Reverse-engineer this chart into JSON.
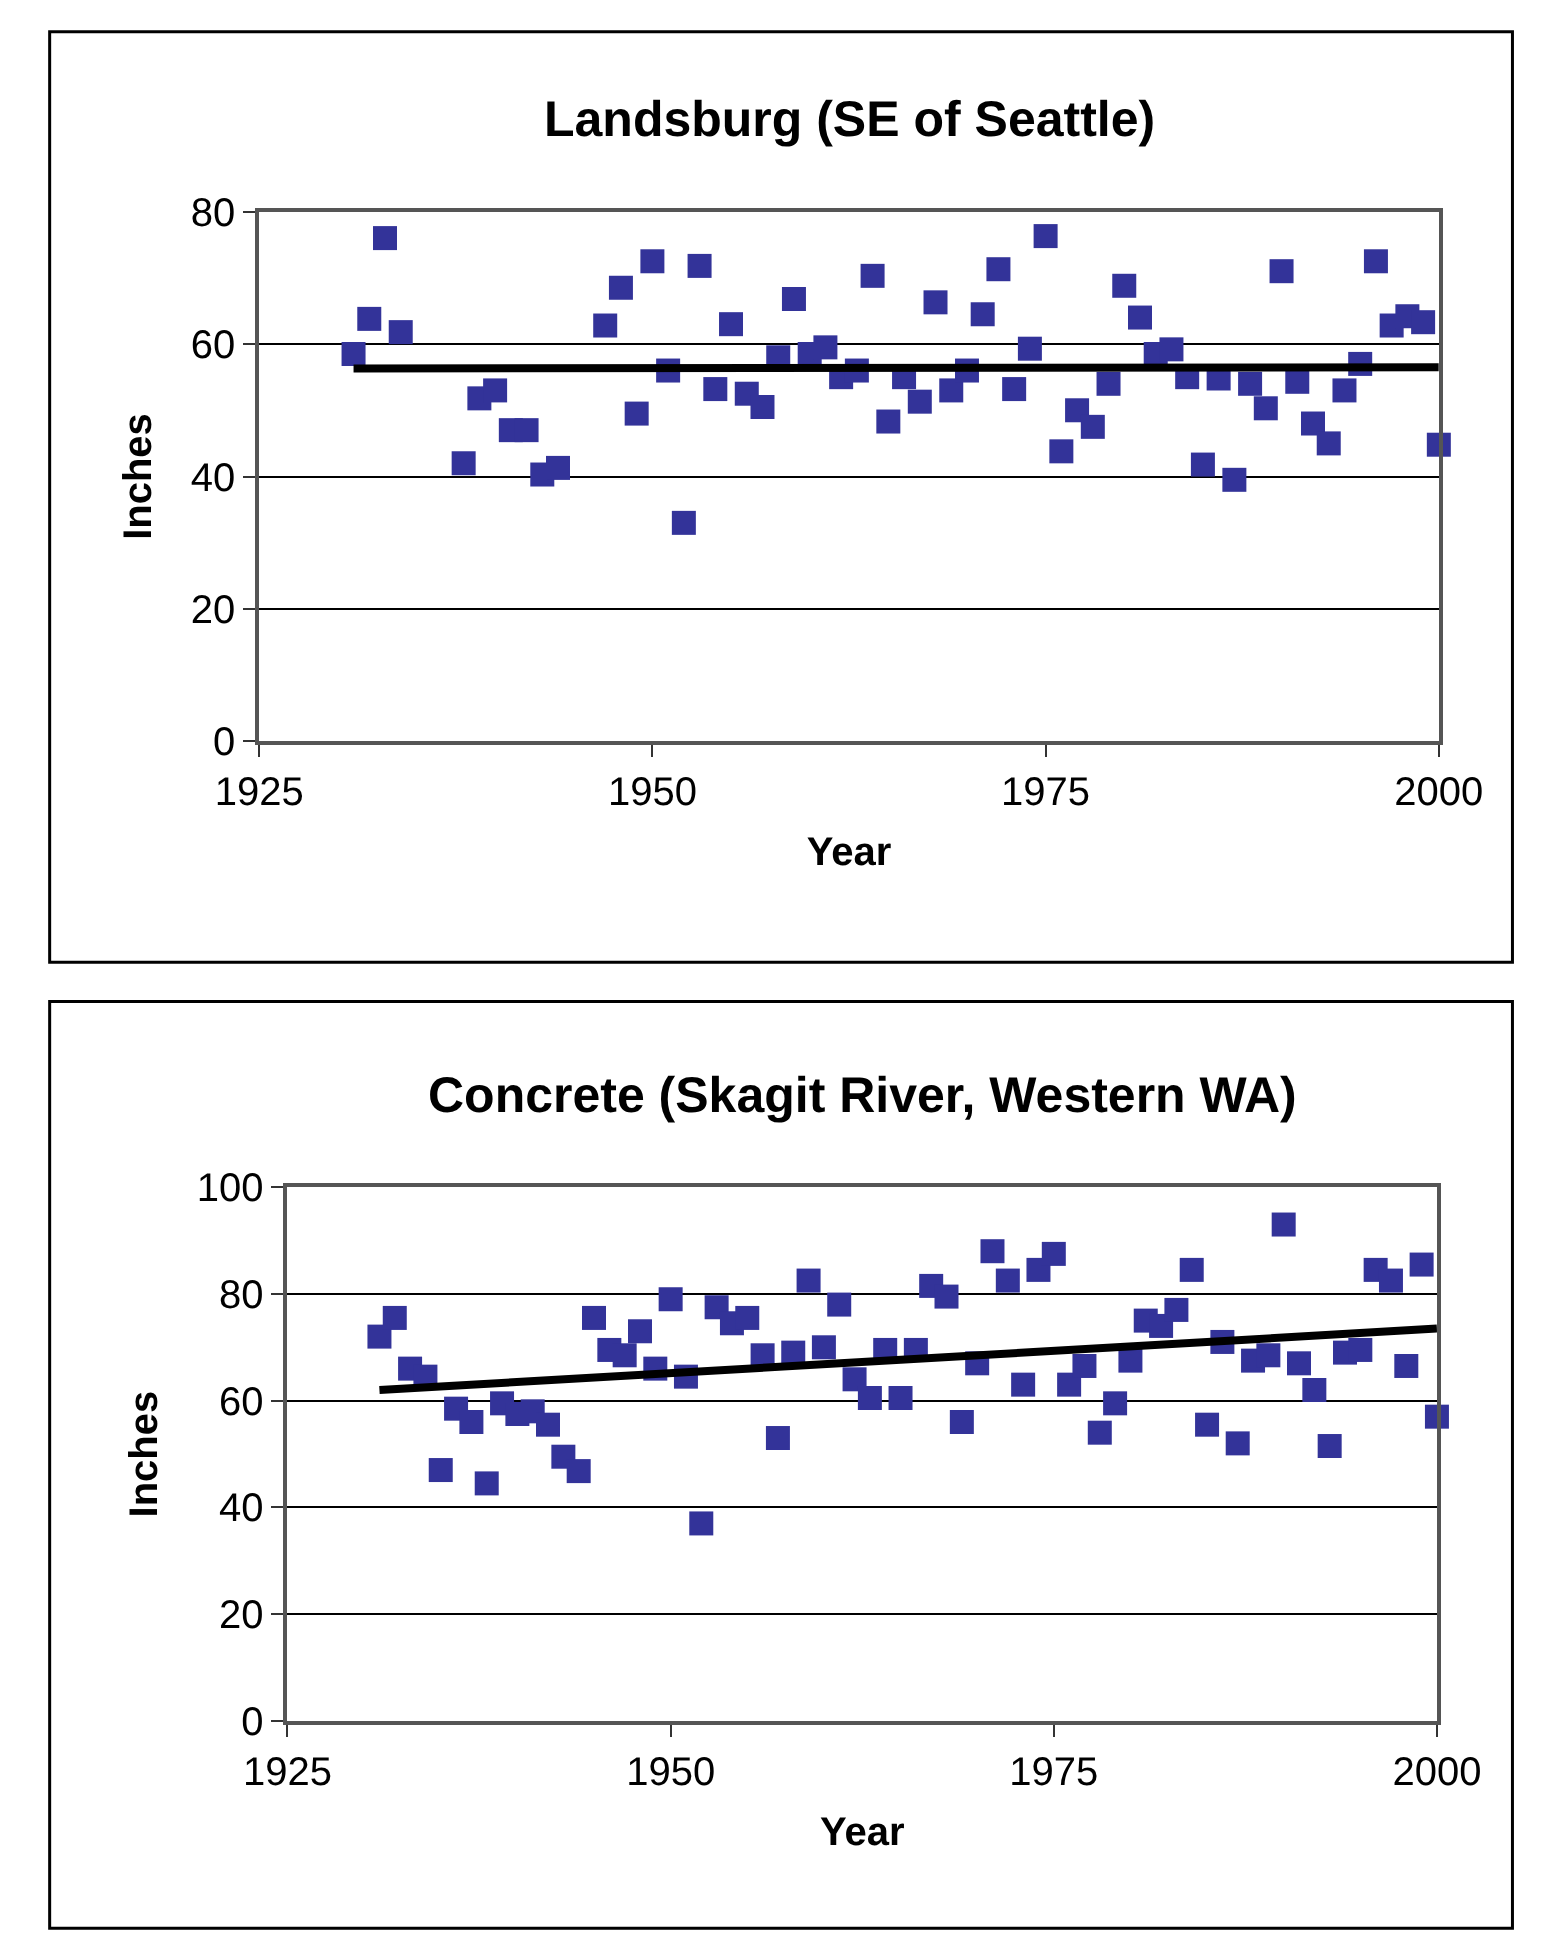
{
  "chart_data": [
    {
      "type": "scatter",
      "title": "Landsburg (SE of Seattle)",
      "xlabel": "Year",
      "ylabel": "Inches",
      "xlim": [
        1925,
        2000
      ],
      "xticks": [
        1925,
        1950,
        1975,
        2000
      ],
      "ylim": [
        0,
        80
      ],
      "yticks": [
        0,
        20,
        40,
        60,
        80
      ],
      "grid": "y",
      "series": [
        {
          "marker": "square",
          "color": "#333399",
          "x": [
            1931,
            1932,
            1933,
            1934,
            1938,
            1939,
            1940,
            1941,
            1942,
            1943,
            1944,
            1947,
            1948,
            1949,
            1950,
            1951,
            1952,
            1953,
            1954,
            1955,
            1956,
            1957,
            1958,
            1959,
            1960,
            1961,
            1962,
            1963,
            1964,
            1965,
            1966,
            1967,
            1968,
            1969,
            1970,
            1971,
            1972,
            1973,
            1974,
            1975,
            1976,
            1977,
            1978,
            1979,
            1980,
            1981,
            1982,
            1983,
            1984,
            1985,
            1986,
            1987,
            1988,
            1989,
            1990,
            1991,
            1992,
            1993,
            1994,
            1995,
            1996,
            1997,
            1998,
            1999,
            2000
          ],
          "values": [
            58.5,
            63.8,
            76,
            61.8,
            42,
            51.8,
            53,
            47,
            47,
            40.3,
            41.3,
            62.8,
            68.5,
            49.5,
            72.5,
            56,
            33,
            71.8,
            53.2,
            63,
            52.5,
            50.5,
            58,
            66.8,
            58.5,
            59.5,
            55,
            56,
            70.3,
            48.3,
            55,
            51.3,
            66.3,
            53,
            56,
            64.5,
            71.3,
            53.2,
            59.3,
            76.3,
            43.8,
            50,
            47.5,
            54,
            68.8,
            64,
            58.5,
            59.2,
            55,
            41.8,
            54.8,
            39.5,
            54,
            50.3,
            71,
            54.3,
            48,
            45,
            53,
            57,
            72.5,
            62.8,
            64.2,
            63.3,
            44.8
          ]
        },
        {
          "type": "line",
          "color": "#000000",
          "x": [
            1931,
            2000
          ],
          "values": [
            56.3,
            56.5
          ]
        }
      ]
    },
    {
      "type": "scatter",
      "title": "Concrete (Skagit River, Western WA)",
      "xlabel": "Year",
      "ylabel": "Inches",
      "xlim": [
        1925,
        2000
      ],
      "xticks": [
        1925,
        1950,
        1975,
        2000
      ],
      "ylim": [
        0,
        100
      ],
      "yticks": [
        0,
        20,
        40,
        60,
        80,
        100
      ],
      "grid": "y",
      "series": [
        {
          "marker": "square",
          "color": "#333399",
          "x": [
            1931,
            1932,
            1933,
            1934,
            1935,
            1936,
            1937,
            1938,
            1939,
            1940,
            1941,
            1942,
            1943,
            1944,
            1945,
            1946,
            1947,
            1948,
            1949,
            1950,
            1951,
            1952,
            1953,
            1954,
            1955,
            1956,
            1957,
            1958,
            1959,
            1960,
            1961,
            1962,
            1963,
            1964,
            1965,
            1966,
            1967,
            1968,
            1969,
            1970,
            1971,
            1972,
            1973,
            1974,
            1975,
            1976,
            1977,
            1978,
            1979,
            1980,
            1981,
            1982,
            1983,
            1984,
            1985,
            1986,
            1987,
            1988,
            1989,
            1990,
            1991,
            1992,
            1993,
            1994,
            1995,
            1996,
            1997,
            1998,
            1999,
            2000
          ],
          "values": [
            72,
            75.5,
            66,
            64.5,
            47,
            58.5,
            56,
            44.5,
            59.5,
            57.5,
            58,
            55.5,
            49.5,
            46.8,
            75.5,
            69.5,
            68.5,
            73,
            66,
            79,
            64.5,
            37,
            77.5,
            74.5,
            75.5,
            68.5,
            53,
            69,
            82.5,
            70,
            78,
            64,
            60.5,
            69.5,
            60.5,
            69.5,
            81.5,
            79.5,
            56,
            67,
            88,
            82.5,
            63,
            84.5,
            87.5,
            63,
            66.5,
            54,
            59.5,
            67.5,
            75,
            74,
            77,
            84.5,
            55.5,
            71,
            52,
            67.5,
            68.5,
            93,
            67,
            62,
            51.5,
            69,
            69.5,
            84.5,
            82.5,
            66.5,
            85.5,
            57
          ]
        },
        {
          "type": "line",
          "color": "#000000",
          "x": [
            1931,
            2000
          ],
          "values": [
            62,
            73.5
          ]
        }
      ]
    }
  ]
}
